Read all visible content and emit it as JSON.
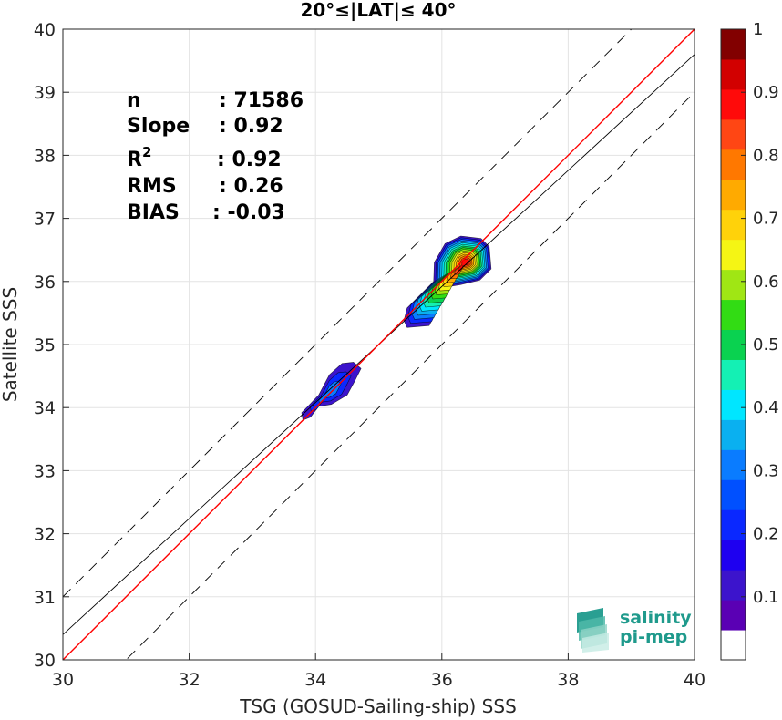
{
  "chart_data": {
    "type": "heatmap",
    "title": "20°≤|LAT|≤ 40°",
    "xlabel": "TSG (GOSUD-Sailing-ship) SSS",
    "ylabel": "Satellite SSS",
    "xlim": [
      30,
      40
    ],
    "ylim": [
      30,
      40
    ],
    "x_ticks": [
      "30",
      "32",
      "34",
      "36",
      "38",
      "40"
    ],
    "y_ticks": [
      "30",
      "31",
      "32",
      "33",
      "34",
      "35",
      "36",
      "37",
      "38",
      "39",
      "40"
    ],
    "grid": true,
    "stats": [
      {
        "label": "n",
        "value": ": 71586"
      },
      {
        "label": "Slope",
        "value": ": 0.92"
      },
      {
        "label": "R",
        "sup": "2",
        "value": ": 0.92"
      },
      {
        "label": "RMS",
        "value": ": 0.26"
      },
      {
        "label": "BIAS",
        "value": ": -0.03"
      }
    ],
    "lines": {
      "identity": {
        "slope": 1,
        "intercept": 0,
        "color": "#ff0000"
      },
      "regression": {
        "slope": 0.92,
        "intercept": 2.8,
        "color": "#000000"
      },
      "upper_dashed": {
        "slope": 1,
        "intercept": 1.0,
        "color": "#000000"
      },
      "lower_dashed": {
        "slope": 1,
        "intercept": -1.0,
        "color": "#000000"
      }
    },
    "density_clusters": [
      {
        "outline": [
          [
            33.8,
            33.8
          ],
          [
            33.92,
            33.85
          ],
          [
            34.05,
            34.02
          ],
          [
            34.25,
            34.05
          ],
          [
            34.5,
            34.2
          ],
          [
            34.62,
            34.42
          ],
          [
            34.72,
            34.62
          ],
          [
            34.6,
            34.72
          ],
          [
            34.42,
            34.7
          ],
          [
            34.22,
            34.52
          ],
          [
            34.05,
            34.2
          ],
          [
            33.88,
            34.02
          ],
          [
            33.78,
            33.92
          ]
        ],
        "levels": [
          0.1,
          0.2,
          0.3
        ]
      },
      {
        "outline": [
          [
            35.45,
            35.27
          ],
          [
            35.8,
            35.3
          ],
          [
            35.9,
            35.5
          ],
          [
            36.0,
            35.9
          ],
          [
            36.3,
            35.95
          ],
          [
            36.6,
            36.02
          ],
          [
            36.78,
            36.2
          ],
          [
            36.75,
            36.55
          ],
          [
            36.62,
            36.68
          ],
          [
            36.3,
            36.72
          ],
          [
            36.05,
            36.6
          ],
          [
            35.88,
            36.3
          ],
          [
            35.87,
            36.0
          ],
          [
            35.72,
            35.85
          ],
          [
            35.45,
            35.58
          ],
          [
            35.4,
            35.38
          ]
        ],
        "levels": [
          0.1,
          0.2,
          0.3,
          0.35,
          0.4,
          0.45,
          0.5,
          0.55,
          0.6,
          0.65,
          0.7,
          0.75,
          0.8,
          0.85,
          0.9
        ],
        "peak": [
          36.38,
          36.3
        ]
      }
    ],
    "colorbar": {
      "min": 0,
      "max": 1,
      "tick_labels": [
        "0.1",
        "0.2",
        "0.3",
        "0.4",
        "0.5",
        "0.6",
        "0.7",
        "0.8",
        "0.9",
        "1"
      ],
      "colors": [
        "#ffffff",
        "#5a00b4",
        "#3c14cc",
        "#1e00f0",
        "#0a28ff",
        "#0050ff",
        "#0a7cff",
        "#0ab0f0",
        "#00e6ff",
        "#14f0b4",
        "#0ad250",
        "#32dc14",
        "#a0e614",
        "#f5f514",
        "#ffd20a",
        "#ffaa00",
        "#ff7800",
        "#ff4614",
        "#ff0a0a",
        "#d20000",
        "#820000"
      ]
    },
    "logo": {
      "line1": "salinity",
      "line2": "pi-mep"
    }
  }
}
